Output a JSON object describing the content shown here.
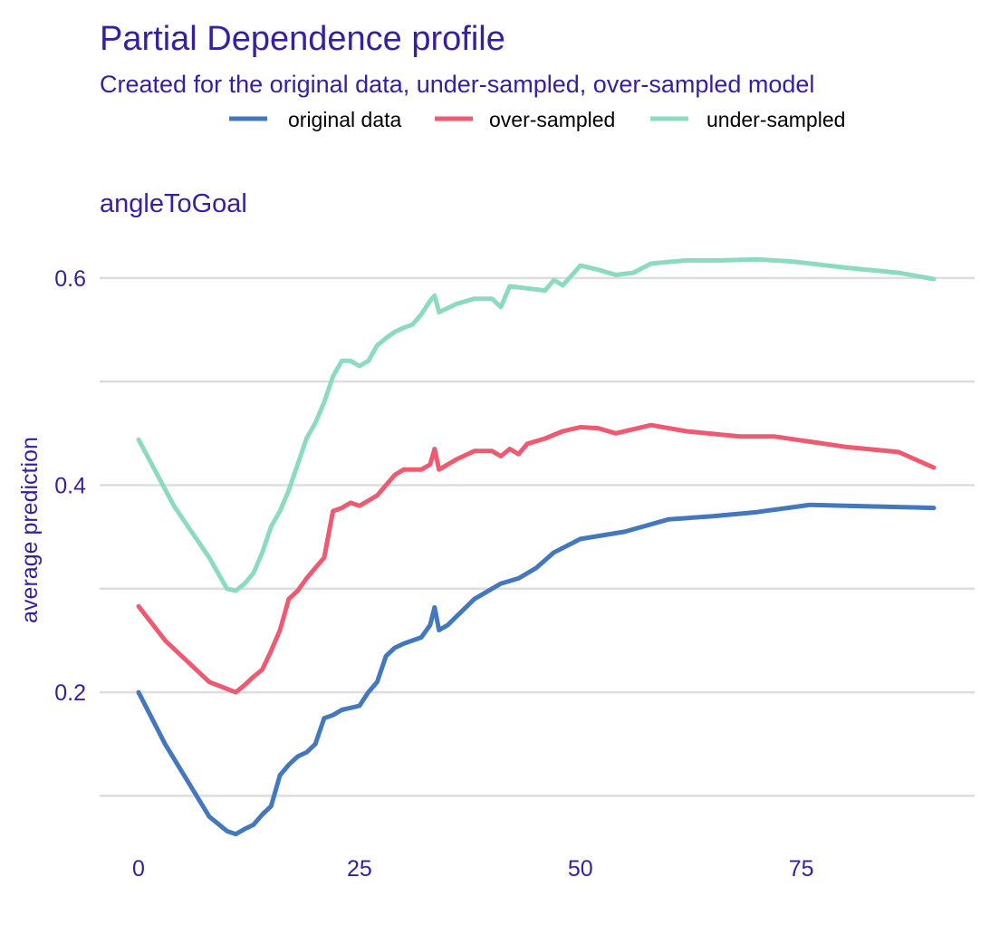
{
  "chart_data": {
    "type": "line",
    "title": "Partial Dependence profile",
    "subtitle": "Created for the original data, under-sampled, over-sampled model",
    "facet_label": "angleToGoal",
    "xlabel": "",
    "ylabel": "average prediction",
    "xlim": [
      0,
      90
    ],
    "ylim": [
      0.0435,
      0.62
    ],
    "x_ticks": [
      0,
      25,
      50,
      75
    ],
    "y_ticks": [
      0.2,
      0.4,
      0.6
    ],
    "y_gridlines": [
      0.1,
      0.2,
      0.3,
      0.4,
      0.5,
      0.6
    ],
    "grid": "horizontal",
    "legend_position": "top",
    "colors": {
      "text": "#371ea3",
      "grid": "#dddddd",
      "original data": "#4378bf",
      "over-sampled": "#f05a71",
      "under-sampled": "#8bdcbe"
    },
    "series": [
      {
        "name": "original data",
        "color": "#4378bf",
        "points": [
          [
            0,
            0.2
          ],
          [
            3,
            0.15
          ],
          [
            8,
            0.08
          ],
          [
            10,
            0.066
          ],
          [
            11,
            0.063
          ],
          [
            12,
            0.068
          ],
          [
            13,
            0.072
          ],
          [
            14,
            0.082
          ],
          [
            15,
            0.09
          ],
          [
            16,
            0.12
          ],
          [
            17,
            0.13
          ],
          [
            18,
            0.138
          ],
          [
            19,
            0.142
          ],
          [
            20,
            0.15
          ],
          [
            21,
            0.175
          ],
          [
            22,
            0.178
          ],
          [
            23,
            0.183
          ],
          [
            24,
            0.185
          ],
          [
            25,
            0.187
          ],
          [
            26,
            0.2
          ],
          [
            27,
            0.21
          ],
          [
            28,
            0.235
          ],
          [
            29,
            0.243
          ],
          [
            30,
            0.247
          ],
          [
            32,
            0.253
          ],
          [
            33,
            0.265
          ],
          [
            33.5,
            0.282
          ],
          [
            34,
            0.26
          ],
          [
            35,
            0.265
          ],
          [
            38,
            0.29
          ],
          [
            40,
            0.3
          ],
          [
            41,
            0.305
          ],
          [
            43,
            0.31
          ],
          [
            45,
            0.32
          ],
          [
            47,
            0.335
          ],
          [
            50,
            0.348
          ],
          [
            55,
            0.355
          ],
          [
            60,
            0.367
          ],
          [
            65,
            0.37
          ],
          [
            70,
            0.374
          ],
          [
            76,
            0.381
          ],
          [
            80,
            0.38
          ],
          [
            90,
            0.378
          ]
        ]
      },
      {
        "name": "over-sampled",
        "color": "#f05a71",
        "points": [
          [
            0,
            0.283
          ],
          [
            3,
            0.25
          ],
          [
            8,
            0.21
          ],
          [
            11,
            0.2
          ],
          [
            12,
            0.207
          ],
          [
            13,
            0.215
          ],
          [
            14,
            0.222
          ],
          [
            15,
            0.24
          ],
          [
            16,
            0.26
          ],
          [
            17,
            0.29
          ],
          [
            18,
            0.298
          ],
          [
            19,
            0.31
          ],
          [
            20,
            0.32
          ],
          [
            21,
            0.33
          ],
          [
            22,
            0.375
          ],
          [
            23,
            0.378
          ],
          [
            24,
            0.383
          ],
          [
            25,
            0.38
          ],
          [
            26,
            0.385
          ],
          [
            27,
            0.39
          ],
          [
            28,
            0.4
          ],
          [
            29,
            0.41
          ],
          [
            30,
            0.415
          ],
          [
            32,
            0.415
          ],
          [
            33,
            0.42
          ],
          [
            33.5,
            0.435
          ],
          [
            34,
            0.415
          ],
          [
            36,
            0.425
          ],
          [
            38,
            0.433
          ],
          [
            40,
            0.433
          ],
          [
            41,
            0.428
          ],
          [
            42,
            0.435
          ],
          [
            43,
            0.43
          ],
          [
            44,
            0.44
          ],
          [
            46,
            0.445
          ],
          [
            48,
            0.452
          ],
          [
            50,
            0.456
          ],
          [
            52,
            0.455
          ],
          [
            54,
            0.45
          ],
          [
            58,
            0.458
          ],
          [
            62,
            0.452
          ],
          [
            68,
            0.447
          ],
          [
            72,
            0.447
          ],
          [
            80,
            0.437
          ],
          [
            86,
            0.432
          ],
          [
            90,
            0.417
          ]
        ]
      },
      {
        "name": "under-sampled",
        "color": "#8bdcbe",
        "points": [
          [
            0,
            0.444
          ],
          [
            4,
            0.38
          ],
          [
            8,
            0.33
          ],
          [
            10,
            0.3
          ],
          [
            11,
            0.298
          ],
          [
            12,
            0.305
          ],
          [
            13,
            0.315
          ],
          [
            14,
            0.335
          ],
          [
            15,
            0.36
          ],
          [
            16,
            0.375
          ],
          [
            17,
            0.395
          ],
          [
            18,
            0.42
          ],
          [
            19,
            0.445
          ],
          [
            20,
            0.46
          ],
          [
            21,
            0.48
          ],
          [
            22,
            0.505
          ],
          [
            23,
            0.52
          ],
          [
            24,
            0.52
          ],
          [
            25,
            0.515
          ],
          [
            26,
            0.52
          ],
          [
            27,
            0.535
          ],
          [
            28,
            0.542
          ],
          [
            29,
            0.548
          ],
          [
            30,
            0.552
          ],
          [
            31,
            0.555
          ],
          [
            32,
            0.565
          ],
          [
            33,
            0.578
          ],
          [
            33.5,
            0.583
          ],
          [
            34,
            0.567
          ],
          [
            36,
            0.575
          ],
          [
            38,
            0.58
          ],
          [
            40,
            0.58
          ],
          [
            41,
            0.572
          ],
          [
            42,
            0.592
          ],
          [
            44,
            0.59
          ],
          [
            46,
            0.588
          ],
          [
            47,
            0.598
          ],
          [
            48,
            0.593
          ],
          [
            50,
            0.612
          ],
          [
            52,
            0.608
          ],
          [
            54,
            0.603
          ],
          [
            56,
            0.605
          ],
          [
            58,
            0.614
          ],
          [
            62,
            0.617
          ],
          [
            66,
            0.617
          ],
          [
            70,
            0.618
          ],
          [
            74,
            0.616
          ],
          [
            80,
            0.61
          ],
          [
            86,
            0.605
          ],
          [
            90,
            0.599
          ]
        ]
      }
    ]
  }
}
